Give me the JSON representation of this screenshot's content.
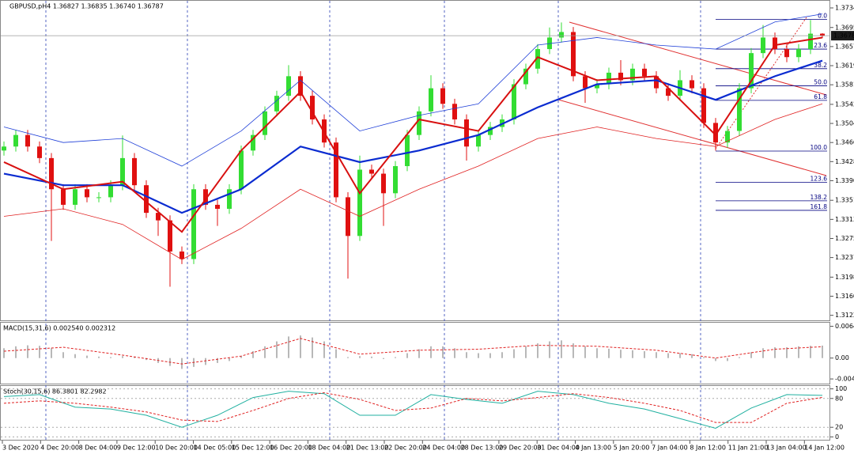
{
  "chart_data": [
    {
      "type": "candlestick",
      "title": "GBPUSD,pH4  1.36827 1.36835 1.36740 1.36787",
      "open": [
        1.345,
        1.3458,
        1.3481,
        1.3458,
        1.3435,
        1.3373,
        1.3342,
        1.3373,
        1.3357,
        1.3357,
        1.3381,
        1.3435,
        1.3381,
        1.3326,
        1.3311,
        1.3249,
        1.3234,
        1.3373,
        1.3342,
        1.3334,
        1.3373,
        1.345,
        1.3481,
        1.3528,
        1.3559,
        1.3598,
        1.3559,
        1.3512,
        1.3466,
        1.3357,
        1.328,
        1.3412,
        1.3404,
        1.3365,
        1.3419,
        1.3481,
        1.3528,
        1.3574,
        1.3543,
        1.3512,
        1.3458,
        1.3481,
        1.3497,
        1.3512,
        1.3582,
        1.3613,
        1.3652,
        1.3675,
        1.3686,
        1.3598,
        1.3574,
        1.3582,
        1.3605,
        1.359,
        1.3613,
        1.3598,
        1.3574,
        1.3559,
        1.359,
        1.3574,
        1.3505,
        1.3466,
        1.3489,
        1.3574,
        1.3644,
        1.3675,
        1.3652,
        1.3636,
        1.3652,
        1.36827
      ],
      "high": [
        1.3468,
        1.3491,
        1.3491,
        1.3468,
        1.3445,
        1.3383,
        1.3383,
        1.3383,
        1.3367,
        1.3391,
        1.348,
        1.3445,
        1.3391,
        1.3336,
        1.3321,
        1.3259,
        1.3383,
        1.3383,
        1.3352,
        1.3383,
        1.346,
        1.3491,
        1.3538,
        1.3569,
        1.362,
        1.3608,
        1.3569,
        1.3522,
        1.3476,
        1.3367,
        1.344,
        1.3422,
        1.3414,
        1.3429,
        1.3491,
        1.3538,
        1.36,
        1.3584,
        1.3553,
        1.3522,
        1.3491,
        1.3507,
        1.3522,
        1.3592,
        1.3623,
        1.3662,
        1.3695,
        1.3705,
        1.3696,
        1.3608,
        1.3592,
        1.3615,
        1.363,
        1.3623,
        1.3623,
        1.3608,
        1.3584,
        1.361,
        1.36,
        1.3584,
        1.3515,
        1.3499,
        1.3584,
        1.3654,
        1.37,
        1.3685,
        1.3662,
        1.3662,
        1.371,
        1.36835
      ],
      "low": [
        1.344,
        1.3448,
        1.3448,
        1.3425,
        1.327,
        1.3332,
        1.3332,
        1.3347,
        1.3347,
        1.3347,
        1.3371,
        1.3371,
        1.3316,
        1.328,
        1.3179,
        1.3224,
        1.3224,
        1.3332,
        1.33,
        1.3324,
        1.3363,
        1.344,
        1.3471,
        1.3518,
        1.3549,
        1.3549,
        1.3502,
        1.3456,
        1.3347,
        1.3195,
        1.327,
        1.3394,
        1.33,
        1.3355,
        1.3409,
        1.3471,
        1.3518,
        1.3533,
        1.3502,
        1.343,
        1.3448,
        1.3471,
        1.3487,
        1.3502,
        1.3572,
        1.3603,
        1.3642,
        1.3665,
        1.3588,
        1.3545,
        1.3564,
        1.3572,
        1.358,
        1.358,
        1.3588,
        1.3564,
        1.3549,
        1.3549,
        1.3564,
        1.3495,
        1.345,
        1.3456,
        1.3479,
        1.3564,
        1.3634,
        1.3642,
        1.3626,
        1.3626,
        1.3642,
        1.3674
      ],
      "close": [
        1.3458,
        1.3481,
        1.3458,
        1.3435,
        1.3373,
        1.3342,
        1.3373,
        1.3357,
        1.3357,
        1.3381,
        1.3435,
        1.3381,
        1.3326,
        1.3311,
        1.3249,
        1.3234,
        1.3373,
        1.3342,
        1.3334,
        1.3373,
        1.345,
        1.3481,
        1.3528,
        1.3559,
        1.3598,
        1.3559,
        1.3512,
        1.3466,
        1.3357,
        1.328,
        1.3412,
        1.3404,
        1.3365,
        1.3419,
        1.3481,
        1.3528,
        1.3574,
        1.3543,
        1.3512,
        1.3458,
        1.3481,
        1.3497,
        1.3512,
        1.3582,
        1.3613,
        1.3652,
        1.3675,
        1.3686,
        1.3598,
        1.3574,
        1.3582,
        1.3605,
        1.359,
        1.3613,
        1.3598,
        1.3574,
        1.3559,
        1.359,
        1.3574,
        1.3505,
        1.3466,
        1.3489,
        1.3574,
        1.3644,
        1.3675,
        1.3652,
        1.3636,
        1.3652,
        1.36827,
        1.36787
      ],
      "up_color": "#33dd33",
      "down_color": "#e01010",
      "series": [
        {
          "color": "#0a2bd0",
          "width": 2.2,
          "x": [
            0,
            5,
            10,
            15,
            20,
            25,
            30,
            35,
            40,
            45,
            50,
            55,
            60,
            65,
            69
          ],
          "values": [
            1.3404,
            1.3381,
            1.3381,
            1.3326,
            1.3373,
            1.3458,
            1.3427,
            1.345,
            1.3481,
            1.3536,
            1.3582,
            1.359,
            1.3551,
            1.3598,
            1.3629
          ]
        },
        {
          "color": "#d81010",
          "width": 2,
          "x": [
            0,
            5,
            10,
            15,
            20,
            25,
            30,
            35,
            40,
            45,
            50,
            55,
            60,
            65,
            69
          ],
          "values": [
            1.3427,
            1.3373,
            1.3388,
            1.3288,
            1.345,
            1.3567,
            1.3365,
            1.3512,
            1.3489,
            1.3636,
            1.359,
            1.3598,
            1.3481,
            1.366,
            1.3675
          ]
        },
        {
          "color": "#2040d8",
          "width": 0.8,
          "x": [
            0,
            5,
            10,
            15,
            20,
            25,
            30,
            35,
            40,
            45,
            50,
            55,
            60,
            65,
            69
          ],
          "values": [
            1.3497,
            1.3466,
            1.3474,
            1.3419,
            1.3489,
            1.359,
            1.3489,
            1.352,
            1.3543,
            1.366,
            1.3675,
            1.366,
            1.3652,
            1.3706,
            1.3722
          ]
        },
        {
          "color": "#e02020",
          "width": 0.8,
          "x": [
            0,
            5,
            10,
            15,
            20,
            25,
            30,
            35,
            40,
            45,
            50,
            55,
            60,
            65,
            69
          ],
          "values": [
            1.3319,
            1.3334,
            1.3303,
            1.3233,
            1.3295,
            1.3373,
            1.3319,
            1.3373,
            1.3419,
            1.3474,
            1.3497,
            1.3474,
            1.3458,
            1.3512,
            1.3543
          ]
        }
      ],
      "fib_levels": [
        {
          "label": "0.0",
          "price": 1.3711
        },
        {
          "label": "23.6",
          "price": 1.3652
        },
        {
          "label": "38.2",
          "price": 1.3613
        },
        {
          "label": "50.0",
          "price": 1.3579
        },
        {
          "label": "61.8",
          "price": 1.355
        },
        {
          "label": "100.0",
          "price": 1.3449
        },
        {
          "label": "123.6",
          "price": 1.3387
        },
        {
          "label": "138.2",
          "price": 1.335
        },
        {
          "label": "161.8",
          "price": 1.3331
        }
      ],
      "ylim": [
        1.3112,
        1.3745
      ],
      "yticks": [
        {
          "value": 1.3734,
          "label": "1.37340"
        },
        {
          "value": 1.3695,
          "label": "1.36950"
        },
        {
          "value": 1.3657,
          "label": "1.36570"
        },
        {
          "value": 1.3619,
          "label": "1.36190"
        },
        {
          "value": 1.3581,
          "label": "1.35810"
        },
        {
          "value": 1.3542,
          "label": "1.35420"
        },
        {
          "value": 1.3504,
          "label": "1.35040"
        },
        {
          "value": 1.3466,
          "label": "1.34660"
        },
        {
          "value": 1.3428,
          "label": "1.34280"
        },
        {
          "value": 1.339,
          "label": "1.33900"
        },
        {
          "value": 1.3351,
          "label": "1.33510"
        },
        {
          "value": 1.3313,
          "label": "1.33130"
        },
        {
          "value": 1.3275,
          "label": "1.32750"
        },
        {
          "value": 1.3237,
          "label": "1.32370"
        },
        {
          "value": 1.3198,
          "label": "1.31980"
        },
        {
          "value": 1.316,
          "label": "1.31600"
        },
        {
          "value": 1.3122,
          "label": "1.31220"
        }
      ],
      "time_labels": [
        "3 Dec 2020",
        "4 Dec 20:00",
        "8 Dec 04:00",
        "9 Dec 12:00",
        "10 Dec 20:00",
        "14 Dec 05:00",
        "15 Dec 12:00",
        "16 Dec 20:00",
        "18 Dec 04:00",
        "21 Dec 13:00",
        "22 Dec 20:00",
        "24 Dec 04:00",
        "28 Dec 13:00",
        "29 Dec 20:00",
        "31 Dec 04:00",
        "4 Jan 13:00",
        "5 Jan 20:00",
        "7 Jan 04:00",
        "8 Jan 12:00",
        "11 Jan 21:00",
        "13 Jan 04:00",
        "14 Jan 12:00"
      ]
    },
    {
      "type": "macd",
      "title": "MACD(15,31,6) 0.002540 0.002312",
      "values": [
        0.002,
        0.0024,
        0.0026,
        0.0025,
        0.002,
        0.0012,
        0.0008,
        0.0005,
        0.0003,
        0.0002,
        0.0004,
        0.0002,
        -0.0004,
        -0.001,
        -0.0016,
        -0.0022,
        -0.0018,
        -0.0014,
        -0.001,
        -0.0006,
        0.0004,
        0.0014,
        0.0024,
        0.0034,
        0.0044,
        0.0046,
        0.0042,
        0.0034,
        0.0018,
        0.0002,
        0.0004,
        0.0003,
        -0.0002,
        0.0002,
        0.001,
        0.0018,
        0.0024,
        0.0024,
        0.002,
        0.0012,
        0.001,
        0.001,
        0.0012,
        0.0018,
        0.0024,
        0.003,
        0.0034,
        0.0036,
        0.003,
        0.0024,
        0.002,
        0.0019,
        0.0017,
        0.0016,
        0.0014,
        0.0012,
        0.001,
        0.001,
        0.0008,
        0.0002,
        -0.0006,
        -0.0006,
        0.0002,
        0.0012,
        0.002,
        0.0022,
        0.0022,
        0.0024,
        0.0025,
        0.00254
      ],
      "color": "#b8b8b8",
      "signal": {
        "color": "#e02020",
        "x": [
          0,
          5,
          10,
          15,
          20,
          25,
          30,
          35,
          40,
          45,
          50,
          55,
          60,
          65,
          69
        ],
        "values": [
          0.0014,
          0.0022,
          0.0006,
          -0.0012,
          0.0004,
          0.004,
          0.0008,
          0.0016,
          0.0018,
          0.0026,
          0.0024,
          0.0016,
          0.0,
          0.0018,
          0.002312
        ]
      },
      "ylim": [
        -0.0052,
        0.0072
      ],
      "yticks": [
        0.006467,
        {
          "value": 0,
          "label": "0.00"
        },
        -0.00425
      ]
    },
    {
      "type": "stochastic",
      "title": "Stoch(30,15,6) 86.3801 82.2982",
      "series": [
        {
          "color": "#20b0a0",
          "dash": false,
          "x": [
            0,
            3,
            6,
            9,
            12,
            15,
            18,
            21,
            24,
            27,
            30,
            33,
            36,
            39,
            42,
            45,
            48,
            51,
            54,
            57,
            60,
            63,
            66,
            69
          ],
          "values": [
            84,
            88,
            62,
            58,
            45,
            20,
            45,
            82,
            95,
            90,
            45,
            45,
            88,
            78,
            70,
            95,
            88,
            70,
            58,
            38,
            18,
            60,
            88,
            86.3801
          ]
        },
        {
          "color": "#e02020",
          "dash": true,
          "x": [
            0,
            3,
            6,
            9,
            12,
            15,
            18,
            21,
            24,
            27,
            30,
            33,
            36,
            39,
            42,
            45,
            48,
            51,
            54,
            57,
            60,
            63,
            66,
            69
          ],
          "values": [
            70,
            75,
            70,
            62,
            52,
            35,
            32,
            55,
            80,
            92,
            78,
            55,
            60,
            80,
            75,
            82,
            90,
            82,
            70,
            55,
            30,
            30,
            70,
            82.2982
          ]
        }
      ],
      "ylim": [
        -6,
        106
      ],
      "yticks": [
        100,
        80,
        20,
        0
      ]
    }
  ]
}
